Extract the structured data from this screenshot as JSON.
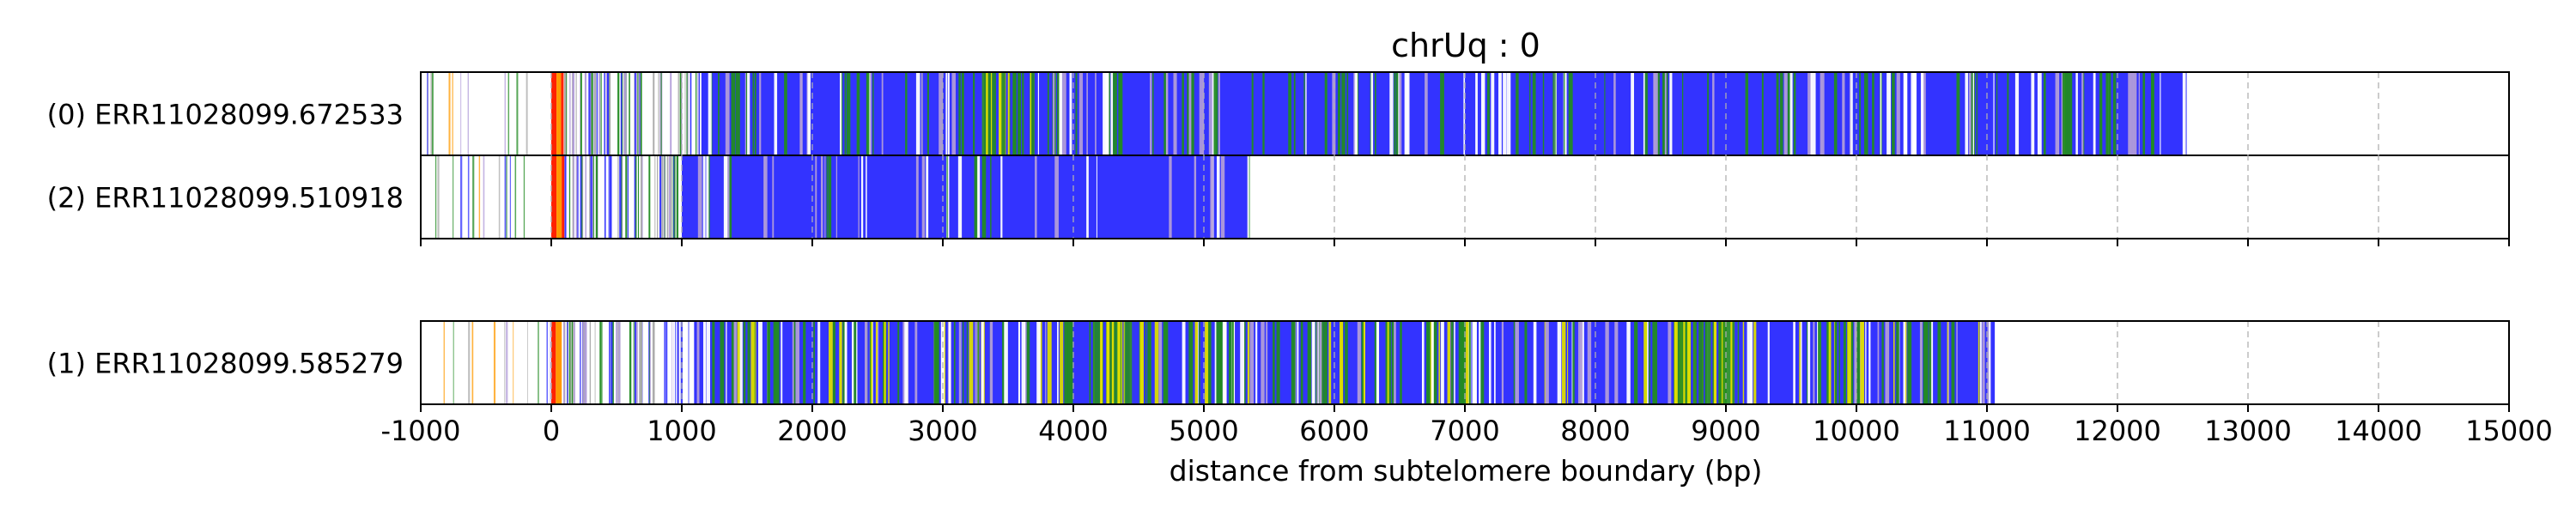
{
  "chart_data": {
    "type": "read-track",
    "title": "chrUq : 0",
    "xlabel": "distance from subtelomere boundary (bp)",
    "xlim": [
      -1000,
      15000
    ],
    "xticks": [
      -1000,
      0,
      1000,
      2000,
      3000,
      4000,
      5000,
      6000,
      7000,
      8000,
      9000,
      10000,
      11000,
      12000,
      13000,
      14000,
      15000
    ],
    "xtick_labels": [
      "-1000",
      "0",
      "1000",
      "2000",
      "3000",
      "4000",
      "5000",
      "6000",
      "7000",
      "8000",
      "9000",
      "10000",
      "11000",
      "12000",
      "13000",
      "14000",
      "15000"
    ],
    "grid": "vertical dashed gridlines at each x tick",
    "base_color": "#3333ff",
    "colors": {
      "red": "#ff2200",
      "orange": "#ff9900",
      "green": "#228b22",
      "yellow": "#dddd00",
      "purple": "#b19cd9",
      "gray": "#aaaaaa",
      "blue": "#3333ff",
      "white": "#ffffff"
    },
    "groups": [
      {
        "tracks": [
          {
            "label": "(0) ERR11028099.672533",
            "read_start": -1000,
            "read_end": 12530,
            "dense_start": 1140,
            "segments": [
              {
                "start": 0,
                "end": 40,
                "color": "red"
              },
              {
                "start": 40,
                "end": 75,
                "color": "orange"
              },
              {
                "start": 75,
                "end": 95,
                "color": "red"
              },
              {
                "start": 3300,
                "end": 3720,
                "color": "green"
              },
              {
                "start": 10360,
                "end": 10390,
                "color": "white"
              }
            ],
            "sparse": [
              {
                "range": [
                  -1000,
                  0
                ],
                "count": 12,
                "colors": [
                  "green",
                  "orange",
                  "purple",
                  "blue",
                  "gray"
                ],
                "seed": 11
              },
              {
                "range": [
                  95,
                  1140
                ],
                "count": 70,
                "colors": [
                  "blue",
                  "purple",
                  "white",
                  "gray",
                  "green"
                ],
                "seed": 12
              },
              {
                "range": [
                  1140,
                  12530
                ],
                "count": 230,
                "colors": [
                  "green",
                  "green",
                  "purple",
                  "white"
                ],
                "seed": 13
              }
            ]
          },
          {
            "label": "(2) ERR11028099.510918",
            "read_start": -1000,
            "read_end": 5350,
            "dense_start": 1000,
            "segments": [
              {
                "start": 0,
                "end": 40,
                "color": "red"
              },
              {
                "start": 40,
                "end": 80,
                "color": "orange"
              },
              {
                "start": 80,
                "end": 100,
                "color": "red"
              }
            ],
            "sparse": [
              {
                "range": [
                  -1000,
                  0
                ],
                "count": 14,
                "colors": [
                  "green",
                  "orange",
                  "purple",
                  "blue",
                  "gray"
                ],
                "seed": 21
              },
              {
                "range": [
                  100,
                  1000
                ],
                "count": 60,
                "colors": [
                  "blue",
                  "purple",
                  "white",
                  "gray",
                  "green"
                ],
                "seed": 22
              },
              {
                "range": [
                  1000,
                  5350
                ],
                "count": 45,
                "colors": [
                  "green",
                  "purple",
                  "white"
                ],
                "seed": 23
              }
            ]
          }
        ]
      },
      {
        "tracks": [
          {
            "label": "(1) ERR11028099.585279",
            "read_start": -1000,
            "read_end": 11060,
            "dense_start": 1100,
            "segments": [
              {
                "start": 0,
                "end": 35,
                "color": "red"
              },
              {
                "start": 35,
                "end": 80,
                "color": "orange"
              },
              {
                "start": 4150,
                "end": 4520,
                "color": "green"
              },
              {
                "start": 8600,
                "end": 9100,
                "color": "green"
              }
            ],
            "sparse": [
              {
                "range": [
                  -1000,
                  0
                ],
                "count": 12,
                "colors": [
                  "green",
                  "orange",
                  "purple",
                  "blue",
                  "gray"
                ],
                "seed": 31
              },
              {
                "range": [
                  80,
                  1100
                ],
                "count": 70,
                "colors": [
                  "blue",
                  "purple",
                  "white",
                  "gray",
                  "green"
                ],
                "seed": 32
              },
              {
                "range": [
                  1100,
                  11060
                ],
                "count": 320,
                "colors": [
                  "green",
                  "green",
                  "white",
                  "yellow",
                  "purple"
                ],
                "seed": 33
              }
            ]
          }
        ]
      }
    ]
  }
}
